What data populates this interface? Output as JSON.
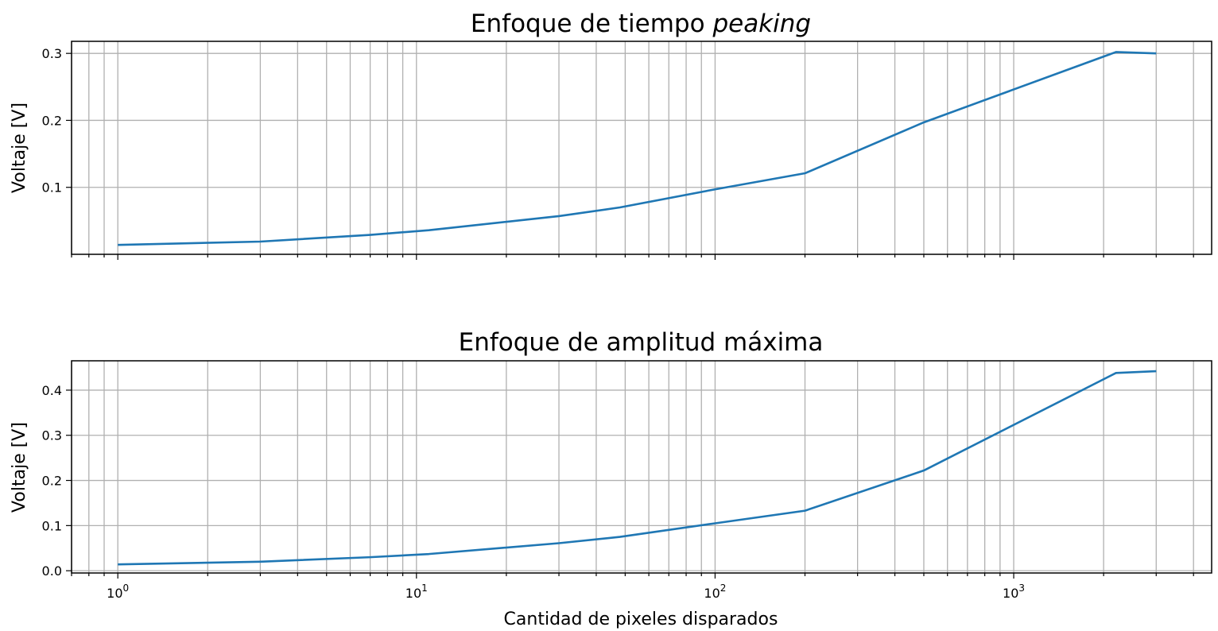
{
  "figure": {
    "xlabel": "Cantidad de pixeles disparados",
    "line_color": "#1f77b4",
    "grid_color": "#b0b0b0"
  },
  "chart_data": [
    {
      "type": "line",
      "title_main": "Enfoque de tiempo ",
      "title_emphasis": "peaking",
      "xlabel": "",
      "ylabel": "Voltaje [V]",
      "xscale": "log",
      "xlim": [
        0.7,
        4600
      ],
      "ylim": [
        0.0,
        0.318
      ],
      "grid": true,
      "yticks": [
        0.1,
        0.2,
        0.3
      ],
      "ytick_labels": [
        "0.1",
        "0.2",
        "0.3"
      ],
      "x_tick_labels_visible": false,
      "x": [
        1,
        3,
        7,
        11,
        30,
        48,
        100,
        200,
        500,
        2200,
        3000
      ],
      "y": [
        0.014,
        0.019,
        0.029,
        0.036,
        0.057,
        0.07,
        0.097,
        0.121,
        0.197,
        0.302,
        0.3
      ]
    },
    {
      "type": "line",
      "title_main": "Enfoque de amplitud máxima",
      "title_emphasis": "",
      "xlabel": "Cantidad de pixeles disparados",
      "ylabel": "Voltaje [V]",
      "xscale": "log",
      "xlim": [
        0.7,
        4600
      ],
      "ylim": [
        -0.005,
        0.465
      ],
      "grid": true,
      "yticks": [
        0.0,
        0.1,
        0.2,
        0.3,
        0.4
      ],
      "ytick_labels": [
        "0.0",
        "0.1",
        "0.2",
        "0.3",
        "0.4"
      ],
      "xtick_labels": [
        {
          "base": "10",
          "exp": "0",
          "value": 1
        },
        {
          "base": "10",
          "exp": "1",
          "value": 10
        },
        {
          "base": "10",
          "exp": "2",
          "value": 100
        },
        {
          "base": "10",
          "exp": "3",
          "value": 1000
        }
      ],
      "x": [
        1,
        3,
        7,
        11,
        30,
        48,
        100,
        200,
        500,
        2200,
        3000
      ],
      "y": [
        0.014,
        0.02,
        0.03,
        0.037,
        0.061,
        0.075,
        0.105,
        0.133,
        0.222,
        0.438,
        0.442
      ]
    }
  ]
}
